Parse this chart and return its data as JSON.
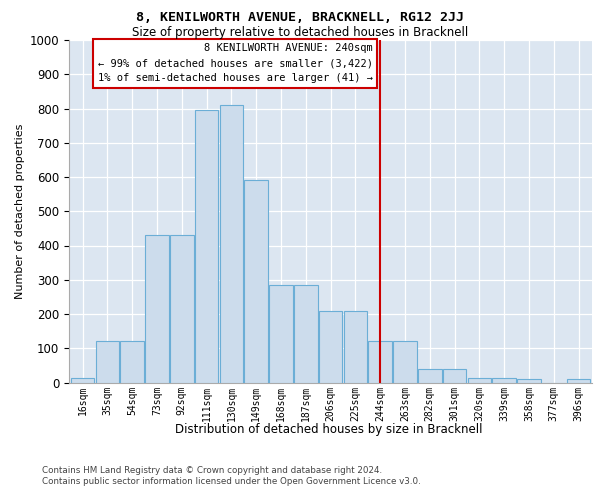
{
  "title": "8, KENILWORTH AVENUE, BRACKNELL, RG12 2JJ",
  "subtitle": "Size of property relative to detached houses in Bracknell",
  "xlabel": "Distribution of detached houses by size in Bracknell",
  "ylabel": "Number of detached properties",
  "categories": [
    "16sqm",
    "35sqm",
    "54sqm",
    "73sqm",
    "92sqm",
    "111sqm",
    "130sqm",
    "149sqm",
    "168sqm",
    "187sqm",
    "206sqm",
    "225sqm",
    "244sqm",
    "263sqm",
    "282sqm",
    "301sqm",
    "320sqm",
    "339sqm",
    "358sqm",
    "377sqm",
    "396sqm"
  ],
  "bar_heights": [
    14,
    120,
    120,
    430,
    430,
    795,
    810,
    590,
    285,
    285,
    210,
    210,
    120,
    120,
    40,
    40,
    13,
    13,
    10,
    0,
    10
  ],
  "bar_color": "#ccdcec",
  "bar_edge_color": "#6baed6",
  "vline_index": 12,
  "vline_color": "#cc0000",
  "annotation_title": "8 KENILWORTH AVENUE: 240sqm",
  "annotation_line1": "← 99% of detached houses are smaller (3,422)",
  "annotation_line2": "1% of semi-detached houses are larger (41) →",
  "annotation_box_edge_color": "#cc0000",
  "ylim": [
    0,
    1000
  ],
  "yticks": [
    0,
    100,
    200,
    300,
    400,
    500,
    600,
    700,
    800,
    900,
    1000
  ],
  "bg_color": "#dce6f1",
  "footer_line1": "Contains HM Land Registry data © Crown copyright and database right 2024.",
  "footer_line2": "Contains public sector information licensed under the Open Government Licence v3.0."
}
